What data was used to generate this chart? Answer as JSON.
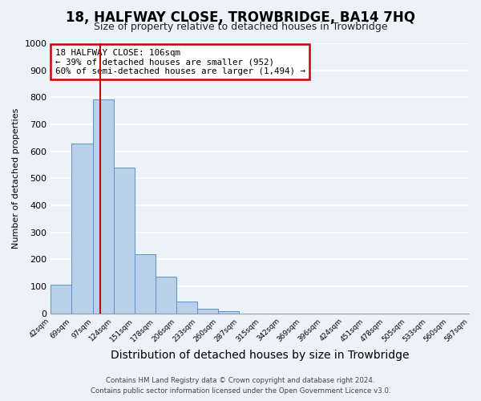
{
  "title": "18, HALFWAY CLOSE, TROWBRIDGE, BA14 7HQ",
  "subtitle": "Size of property relative to detached houses in Trowbridge",
  "xlabel": "Distribution of detached houses by size in Trowbridge",
  "ylabel": "Number of detached properties",
  "bin_edges": [
    42,
    69,
    97,
    124,
    151,
    178,
    206,
    233,
    260,
    287,
    315,
    342,
    369,
    396,
    424,
    451,
    478,
    505,
    533,
    560,
    587
  ],
  "bar_heights": [
    107,
    628,
    793,
    541,
    220,
    135,
    45,
    17,
    8,
    0,
    0,
    0,
    0,
    0,
    0,
    0,
    0,
    0,
    0,
    0
  ],
  "x_tick_labels": [
    "42sqm",
    "69sqm",
    "97sqm",
    "124sqm",
    "151sqm",
    "178sqm",
    "206sqm",
    "233sqm",
    "260sqm",
    "287sqm",
    "315sqm",
    "342sqm",
    "369sqm",
    "396sqm",
    "424sqm",
    "451sqm",
    "478sqm",
    "505sqm",
    "533sqm",
    "560sqm",
    "587sqm"
  ],
  "ylim": [
    0,
    1000
  ],
  "yticks": [
    0,
    100,
    200,
    300,
    400,
    500,
    600,
    700,
    800,
    900,
    1000
  ],
  "bar_color": "#b8d0e8",
  "bar_edge_color": "#5b92c9",
  "background_color": "#edf2f9",
  "grid_color": "#ffffff",
  "red_line_x": 106,
  "annotation_title": "18 HALFWAY CLOSE: 106sqm",
  "annotation_line1": "← 39% of detached houses are smaller (952)",
  "annotation_line2": "60% of semi-detached houses are larger (1,494) →",
  "annotation_box_color": "#ffffff",
  "annotation_box_edge": "#cc0000",
  "red_line_color": "#cc0000",
  "footer_line1": "Contains HM Land Registry data © Crown copyright and database right 2024.",
  "footer_line2": "Contains public sector information licensed under the Open Government Licence v3.0.",
  "title_fontsize": 12,
  "subtitle_fontsize": 9,
  "xlabel_fontsize": 10,
  "ylabel_fontsize": 8
}
